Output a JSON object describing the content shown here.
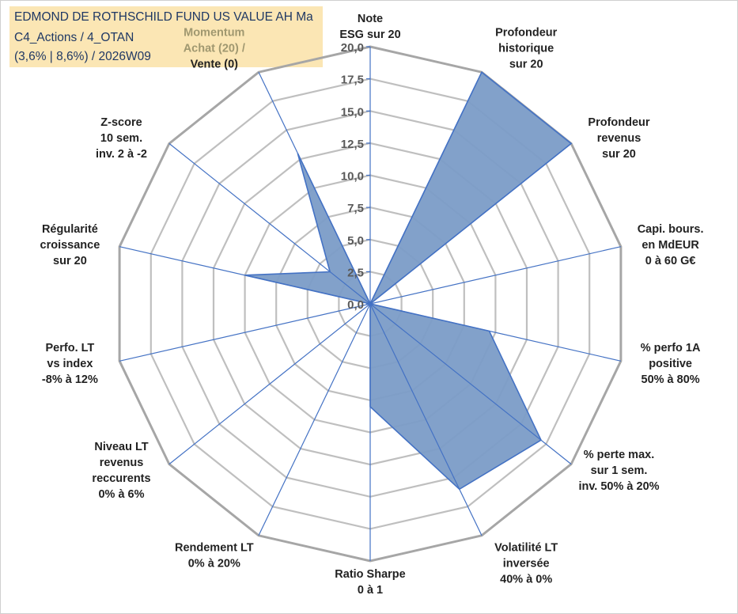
{
  "colors": {
    "fill": "#7b9cc7",
    "stroke": "#4472c4",
    "grid": "#bfbfbf",
    "outer": "#a6a6a6",
    "title_bg": "#fbe6b4",
    "title_text": "#1f3864"
  },
  "chart_data": {
    "type": "radar",
    "title_lines": [
      "EDMOND DE ROTHSCHILD FUND US VALUE AH Ma",
      "C4_Actions / 4_OTAN",
      "(3,6% | 8,6%) / 2026W09"
    ],
    "range": [
      0,
      20
    ],
    "ticks": [
      "0,0",
      "2,5",
      "5,0",
      "7,5",
      "10,0",
      "12,5",
      "15,0",
      "17,5",
      "20,0"
    ],
    "axes": [
      {
        "label": [
          "Note",
          "ESG sur 20"
        ],
        "value": 0
      },
      {
        "label": [
          "Profondeur",
          "historique",
          "sur 20"
        ],
        "value": 20
      },
      {
        "label": [
          "Profondeur",
          "revenus",
          "sur 20"
        ],
        "value": 20
      },
      {
        "label": [
          "Capi. bours.",
          "en MdEUR",
          "0 à 60 G€"
        ],
        "value": 0
      },
      {
        "label": [
          "% perfo 1A",
          "positive",
          "50% à 80%"
        ],
        "value": 9.5
      },
      {
        "label": [
          "% perte max.",
          "sur 1 sem.",
          "inv. 50% à 20%"
        ],
        "value": 17
      },
      {
        "label": [
          "Volatilité LT",
          "inversée",
          "40% à 0%"
        ],
        "value": 16
      },
      {
        "label": [
          "Ratio Sharpe",
          "0 à 1"
        ],
        "value": 8
      },
      {
        "label": [
          "Rendement LT",
          "0% à 20%"
        ],
        "value": 0
      },
      {
        "label": [
          "Niveau LT",
          "revenus",
          "reccurents",
          "0% à 6%"
        ],
        "value": 0
      },
      {
        "label": [
          "Perfo. LT",
          "vs index",
          "-8% à 12%"
        ],
        "value": 0
      },
      {
        "label": [
          "Régularité",
          "croissance",
          "sur 20"
        ],
        "value": 10
      },
      {
        "label": [
          "Z-score",
          "10 sem.",
          "inv. 2 à -2"
        ],
        "value": 4
      },
      {
        "label": [
          "Momentum",
          "Achat (20) /",
          "Vente (0)"
        ],
        "value": 13
      }
    ]
  }
}
